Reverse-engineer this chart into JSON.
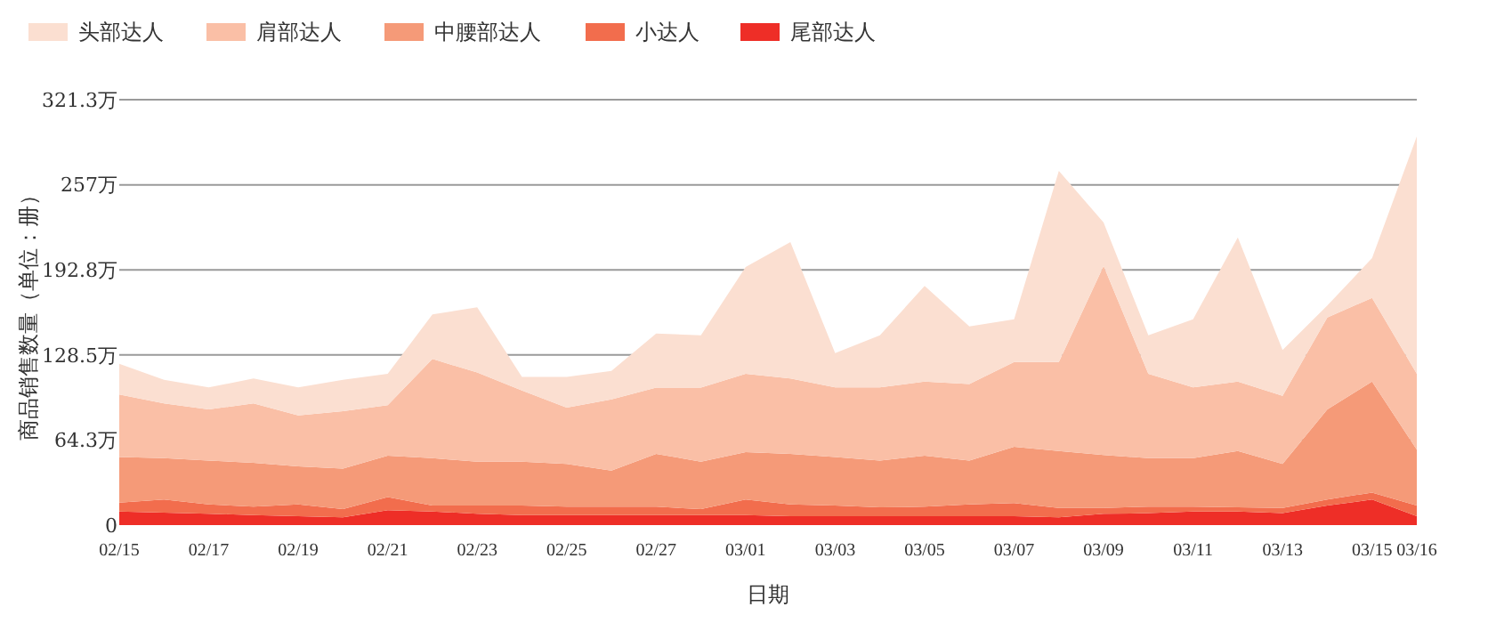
{
  "chart_data": {
    "type": "area",
    "stacked": true,
    "xlabel": "日期",
    "ylabel": "商品销售数量（单位：册）",
    "categories": [
      "02/15",
      null,
      "02/17",
      null,
      "02/19",
      null,
      "02/21",
      null,
      "02/23",
      null,
      "02/25",
      null,
      "02/27",
      null,
      "03/01",
      null,
      "03/03",
      null,
      "03/05",
      null,
      "03/07",
      null,
      "03/09",
      null,
      "03/11",
      null,
      "03/13",
      null,
      "03/15",
      "03/16"
    ],
    "ylim": [
      0,
      321.3
    ],
    "yticks": [
      0,
      {
        "value": 64.3,
        "label": "64.3万"
      },
      {
        "value": 128.5,
        "label": "128.5万"
      },
      {
        "value": 192.8,
        "label": "192.8万"
      },
      {
        "value": 257,
        "label": "257万"
      },
      {
        "value": 321.3,
        "label": "321.3万"
      }
    ],
    "grid": "y",
    "legend": "top left",
    "series": [
      {
        "name": "尾部达人",
        "color": "#ee2e27",
        "values": [
          10.3,
          9.4,
          8.5,
          7.6,
          6.7,
          5.8,
          11.2,
          10.3,
          8.5,
          7.6,
          7.6,
          7.6,
          7.6,
          7.6,
          7.6,
          6.7,
          6.7,
          6.7,
          6.7,
          6.7,
          6.7,
          5.8,
          8.5,
          9.0,
          10.3,
          10.3,
          9.0,
          14.8,
          19.3,
          6.7
        ]
      },
      {
        "name": "小达人",
        "color": "#f26d4d",
        "values": [
          6.7,
          9.9,
          7.2,
          6.3,
          9.0,
          6.3,
          9.9,
          4.5,
          6.3,
          7.2,
          6.3,
          6.3,
          6.3,
          4.5,
          11.7,
          9.0,
          8.1,
          6.7,
          7.2,
          9.0,
          9.9,
          7.2,
          4.5,
          4.9,
          3.6,
          3.1,
          4.0,
          4.5,
          5.3,
          8.1
        ]
      },
      {
        "name": "中腰部达人",
        "color": "#f59a78",
        "values": [
          34.5,
          31.3,
          33.1,
          33.2,
          28.7,
          30.5,
          31.3,
          35.8,
          33.1,
          33.1,
          32.3,
          27.3,
          39.9,
          35.8,
          35.8,
          38.1,
          36.7,
          35.4,
          38.5,
          33.1,
          42.5,
          43.0,
          39.9,
          36.7,
          36.7,
          42.6,
          33.2,
          68.1,
          83.8,
          42.1
        ]
      },
      {
        "name": "肩部达人",
        "color": "#fabfa6",
        "values": [
          47.1,
          41.3,
          38.6,
          44.8,
          38.5,
          43.4,
          38.1,
          74.9,
          67.3,
          53.8,
          42.5,
          53.8,
          50.1,
          56.0,
          59.2,
          56.9,
          52.5,
          55.2,
          56.0,
          57.8,
          64.1,
          67.2,
          142.9,
          63.7,
          53.4,
          52.4,
          51.5,
          69.4,
          63.2,
          57.4
        ]
      },
      {
        "name": "头部达人",
        "color": "#fbdfd1",
        "values": [
          23.3,
          17.9,
          16.6,
          18.8,
          21.1,
          23.8,
          23.8,
          33.6,
          49.3,
          10.3,
          23.3,
          21.5,
          40.8,
          39.5,
          80.6,
          103.0,
          25.9,
          39.4,
          72.2,
          43.5,
          32.3,
          144.3,
          32.7,
          29.1,
          51.5,
          108.9,
          34.5,
          9.0,
          30.0,
          179.2
        ]
      }
    ]
  }
}
